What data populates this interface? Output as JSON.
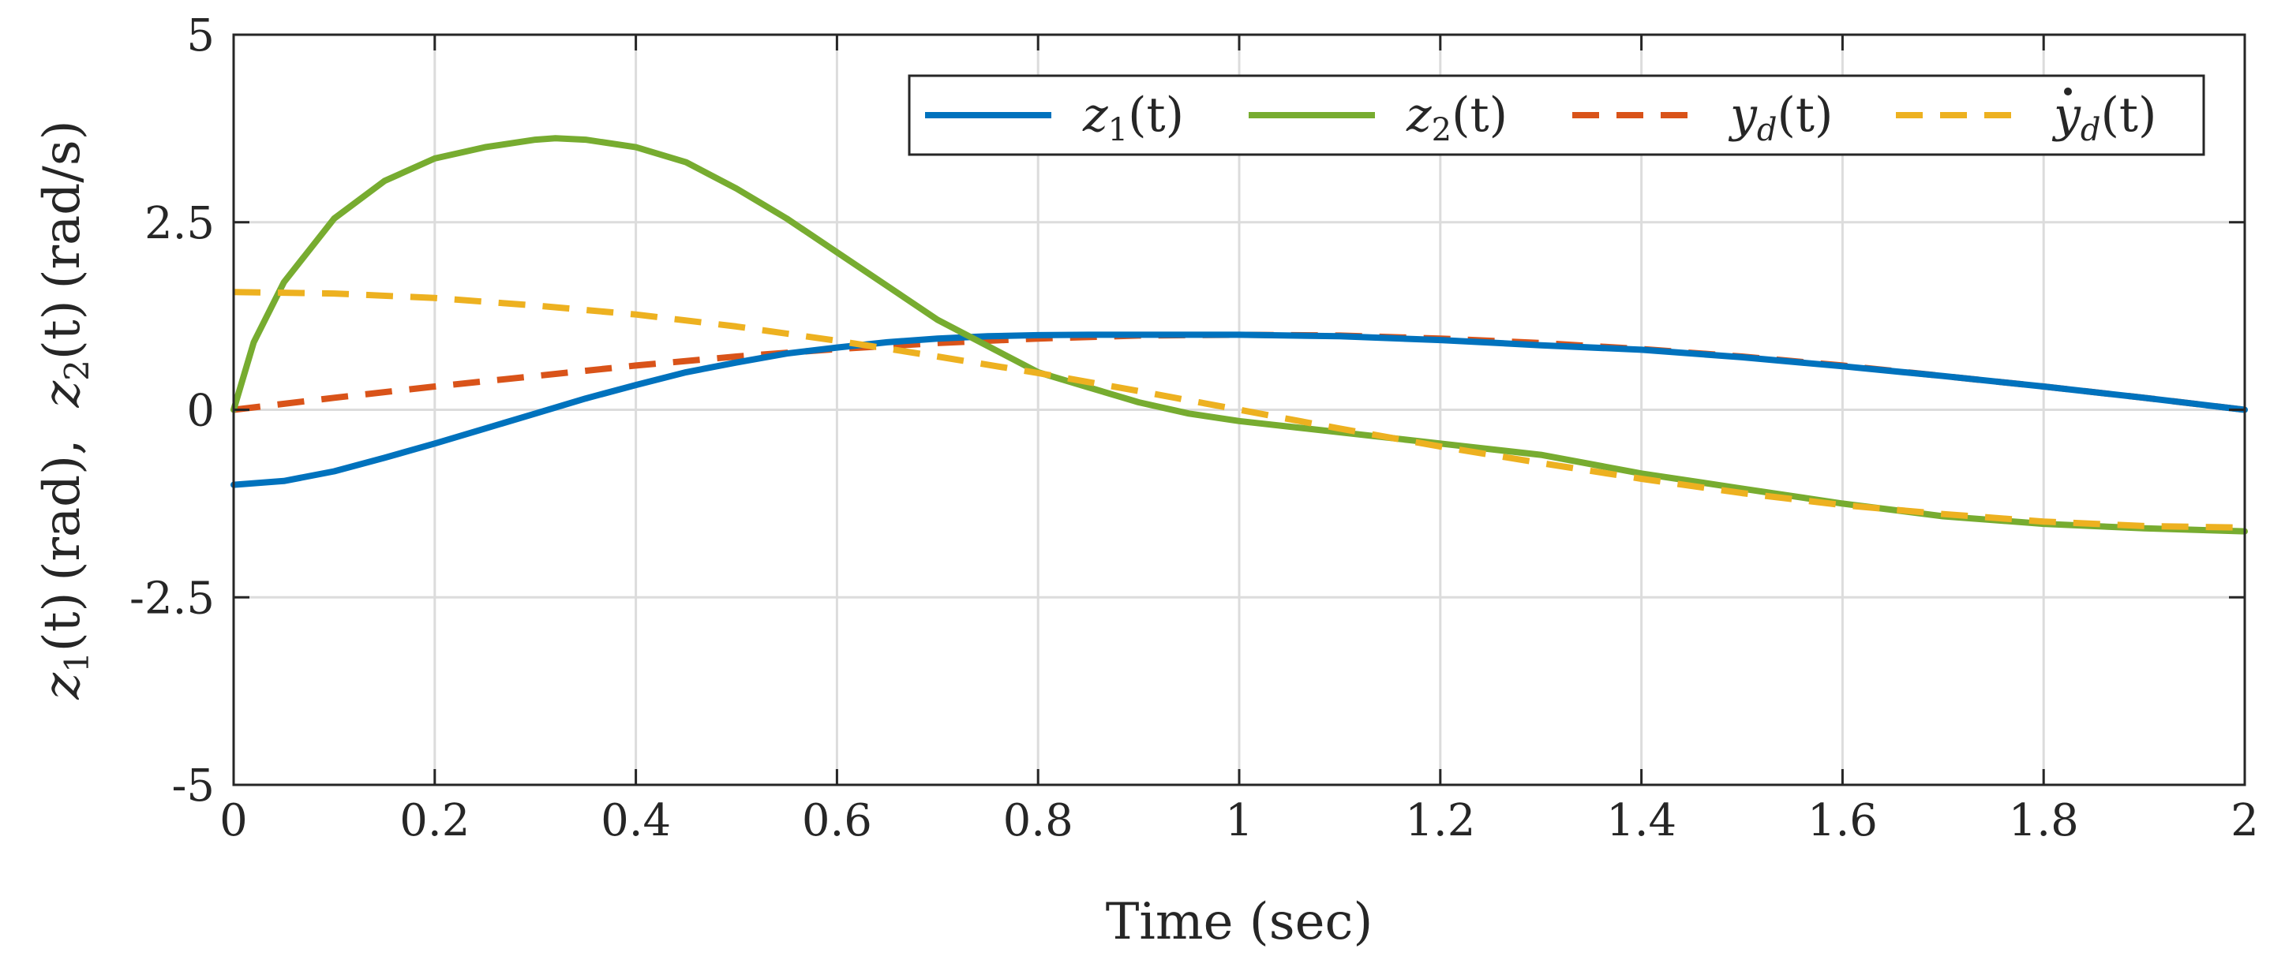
{
  "chart_data": {
    "type": "line",
    "xlabel": "Time (sec)",
    "ylabel_parts": {
      "z1_sym": "z",
      "z1_sub": "1",
      "z1_arg": "(t)",
      "z1_unit": "(rad),",
      "z2_sym": "z",
      "z2_sub": "2",
      "z2_arg": "(t)",
      "z2_unit": "(rad/s)"
    },
    "xlim": [
      0,
      2
    ],
    "ylim": [
      -5,
      5
    ],
    "xticks": [
      0,
      0.2,
      0.4,
      0.6,
      0.8,
      1,
      1.2,
      1.4,
      1.6,
      1.8,
      2
    ],
    "xtick_labels": [
      "0",
      "0.2",
      "0.4",
      "0.6",
      "0.8",
      "1",
      "1.2",
      "1.4",
      "1.6",
      "1.8",
      "2"
    ],
    "yticks": [
      -5,
      -2.5,
      0,
      2.5,
      5
    ],
    "ytick_labels": [
      "-5",
      "-2.5",
      "0",
      "2.5",
      "5"
    ],
    "grid": true,
    "legend_position": "top-right",
    "series": [
      {
        "name": "z1(t)",
        "legend": {
          "sym": "z",
          "sub": "1",
          "arg": "(t)"
        },
        "color": "#0072BD",
        "dash": "solid",
        "x": [
          0,
          0.05,
          0.1,
          0.15,
          0.2,
          0.25,
          0.3,
          0.35,
          0.4,
          0.45,
          0.5,
          0.55,
          0.6,
          0.65,
          0.7,
          0.75,
          0.8,
          0.85,
          0.9,
          0.95,
          1.0,
          1.1,
          1.2,
          1.3,
          1.4,
          1.5,
          1.6,
          1.7,
          1.8,
          1.9,
          2.0
        ],
        "y": [
          -1.0,
          -0.95,
          -0.82,
          -0.64,
          -0.45,
          -0.25,
          -0.05,
          0.15,
          0.33,
          0.5,
          0.63,
          0.75,
          0.83,
          0.9,
          0.95,
          0.98,
          0.995,
          1.0,
          1.0,
          1.0,
          1.0,
          0.98,
          0.93,
          0.86,
          0.8,
          0.7,
          0.58,
          0.45,
          0.31,
          0.16,
          0.0
        ]
      },
      {
        "name": "z2(t)",
        "legend": {
          "sym": "z",
          "sub": "2",
          "arg": "(t)"
        },
        "color": "#77AC30",
        "dash": "solid",
        "x": [
          0,
          0.02,
          0.05,
          0.1,
          0.15,
          0.2,
          0.25,
          0.3,
          0.32,
          0.35,
          0.4,
          0.45,
          0.5,
          0.55,
          0.6,
          0.65,
          0.7,
          0.75,
          0.8,
          0.85,
          0.9,
          0.95,
          1.0,
          1.1,
          1.2,
          1.3,
          1.4,
          1.5,
          1.6,
          1.7,
          1.8,
          1.9,
          2.0
        ],
        "y": [
          0.0,
          0.9,
          1.7,
          2.55,
          3.05,
          3.35,
          3.5,
          3.6,
          3.62,
          3.6,
          3.5,
          3.3,
          2.95,
          2.55,
          2.1,
          1.65,
          1.2,
          0.85,
          0.5,
          0.3,
          0.1,
          -0.05,
          -0.15,
          -0.3,
          -0.45,
          -0.6,
          -0.85,
          -1.05,
          -1.25,
          -1.42,
          -1.52,
          -1.58,
          -1.62
        ]
      },
      {
        "name": "yd(t)",
        "legend": {
          "sym": "y",
          "sub": "d",
          "arg": "(t)",
          "dot": false
        },
        "color": "#D95319",
        "dash": "dashed",
        "x": [
          0,
          0.1,
          0.2,
          0.3,
          0.4,
          0.5,
          0.6,
          0.7,
          0.8,
          0.9,
          1.0,
          1.1,
          1.2,
          1.3,
          1.4,
          1.5,
          1.6,
          1.7,
          1.8,
          1.9,
          2.0
        ],
        "y": [
          0.0,
          0.16,
          0.31,
          0.45,
          0.59,
          0.71,
          0.81,
          0.89,
          0.95,
          0.99,
          1.0,
          0.99,
          0.95,
          0.89,
          0.81,
          0.71,
          0.59,
          0.45,
          0.31,
          0.16,
          0.0
        ]
      },
      {
        "name": "ẏd(t)",
        "legend": {
          "sym": "y",
          "sub": "d",
          "arg": "(t)",
          "dot": true
        },
        "color": "#EDB120",
        "dash": "dashed",
        "x": [
          0,
          0.1,
          0.2,
          0.3,
          0.4,
          0.5,
          0.6,
          0.7,
          0.8,
          0.9,
          1.0,
          1.1,
          1.2,
          1.3,
          1.4,
          1.5,
          1.6,
          1.7,
          1.8,
          1.9,
          2.0
        ],
        "y": [
          1.57,
          1.55,
          1.49,
          1.39,
          1.27,
          1.11,
          0.92,
          0.71,
          0.49,
          0.25,
          0.0,
          -0.25,
          -0.49,
          -0.71,
          -0.92,
          -1.11,
          -1.27,
          -1.39,
          -1.49,
          -1.55,
          -1.57
        ]
      }
    ]
  }
}
